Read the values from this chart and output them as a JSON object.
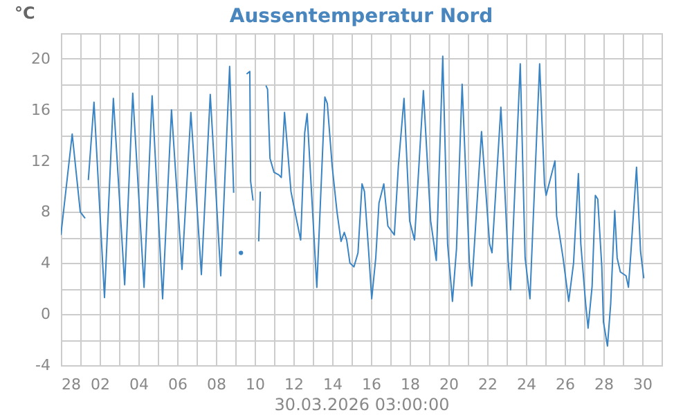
{
  "chart_data": {
    "type": "line",
    "title": "Aussentemperatur Nord",
    "xlabel": "30.03.2026 03:00:00",
    "ylabel": "°C",
    "grid": true,
    "legend": false,
    "marker": "none",
    "line_style": "solid",
    "xlim": [
      "2026-02-28",
      "2026-03-31"
    ],
    "xticks": [
      {
        "value": "2026-02-28",
        "label": "28"
      },
      {
        "value": "2026-03-01",
        "label": null
      },
      {
        "value": "2026-03-02",
        "label": "02"
      },
      {
        "value": "2026-03-03",
        "label": null
      },
      {
        "value": "2026-03-04",
        "label": "04"
      },
      {
        "value": "2026-03-05",
        "label": null
      },
      {
        "value": "2026-03-06",
        "label": "06"
      },
      {
        "value": "2026-03-07",
        "label": null
      },
      {
        "value": "2026-03-08",
        "label": "08"
      },
      {
        "value": "2026-03-09",
        "label": null
      },
      {
        "value": "2026-03-10",
        "label": "10"
      },
      {
        "value": "2026-03-11",
        "label": null
      },
      {
        "value": "2026-03-12",
        "label": "12"
      },
      {
        "value": "2026-03-13",
        "label": null
      },
      {
        "value": "2026-03-14",
        "label": "14"
      },
      {
        "value": "2026-03-15",
        "label": null
      },
      {
        "value": "2026-03-16",
        "label": "16"
      },
      {
        "value": "2026-03-17",
        "label": null
      },
      {
        "value": "2026-03-18",
        "label": "18"
      },
      {
        "value": "2026-03-19",
        "label": null
      },
      {
        "value": "2026-03-20",
        "label": "20"
      },
      {
        "value": "2026-03-21",
        "label": null
      },
      {
        "value": "2026-03-22",
        "label": "22"
      },
      {
        "value": "2026-03-23",
        "label": null
      },
      {
        "value": "2026-03-24",
        "label": "24"
      },
      {
        "value": "2026-03-25",
        "label": null
      },
      {
        "value": "2026-03-26",
        "label": "26"
      },
      {
        "value": "2026-03-27",
        "label": null
      },
      {
        "value": "2026-03-28",
        "label": "28"
      },
      {
        "value": "2026-03-29",
        "label": null
      },
      {
        "value": "2026-03-30",
        "label": "30"
      },
      {
        "value": "2026-03-31",
        "label": null
      }
    ],
    "ylim": [
      -4,
      22
    ],
    "yticks": [
      -4,
      {
        "value": -2,
        "label": null
      },
      0,
      {
        "value": 2,
        "label": null
      },
      4,
      {
        "value": 6,
        "label": null
      },
      8,
      {
        "value": 10,
        "label": null
      },
      12,
      {
        "value": 14,
        "label": null
      },
      16,
      {
        "value": 18,
        "label": null
      },
      20,
      {
        "value": 22,
        "label": null
      }
    ],
    "series": [
      {
        "color": "#3a84c4",
        "x": [
          "2026-02-28T00:00",
          "2026-02-28T14:00",
          "2026-03-01T00:00",
          "2026-03-01T06:00",
          "2026-03-01T08:00",
          "2026-03-01T10:00",
          "2026-03-01T17:00",
          "2026-03-02T06:00",
          "2026-03-02T17:00",
          "2026-03-03T07:00",
          "2026-03-03T17:00",
          "2026-03-04T07:00",
          "2026-03-04T17:00",
          "2026-03-05T06:00",
          "2026-03-05T17:00",
          "2026-03-06T06:00",
          "2026-03-06T17:00",
          "2026-03-07T06:00",
          "2026-03-07T17:00",
          "2026-03-08T06:00",
          "2026-03-08T17:00",
          "2026-03-08T22:00",
          "2026-03-09T02:00",
          "2026-03-09T07:00",
          "2026-03-09T10:00",
          "2026-03-09T14:00",
          "2026-03-09T18:00",
          "2026-03-09T19:00",
          "2026-03-09T22:00",
          "2026-03-10T02:00",
          "2026-03-10T05:00",
          "2026-03-10T07:00",
          "2026-03-10T10:00",
          "2026-03-10T14:00",
          "2026-03-10T16:00",
          "2026-03-10T19:00",
          "2026-03-11T00:00",
          "2026-03-11T06:00",
          "2026-03-11T09:00",
          "2026-03-11T13:00",
          "2026-03-11T21:00",
          "2026-03-12T02:00",
          "2026-03-12T09:00",
          "2026-03-12T14:00",
          "2026-03-12T17:00",
          "2026-03-13T05:00",
          "2026-03-13T15:00",
          "2026-03-13T18:00",
          "2026-03-14T00:00",
          "2026-03-14T06:00",
          "2026-03-14T11:00",
          "2026-03-14T15:00",
          "2026-03-14T18:00",
          "2026-03-14T22:00",
          "2026-03-15T03:00",
          "2026-03-15T08:00",
          "2026-03-15T13:00",
          "2026-03-15T16:00",
          "2026-03-15T21:00",
          "2026-03-16T01:00",
          "2026-03-16T06:00",
          "2026-03-16T10:00",
          "2026-03-16T16:00",
          "2026-03-16T21:00",
          "2026-03-17T05:00",
          "2026-03-17T10:00",
          "2026-03-17T17:00",
          "2026-03-18T00:00",
          "2026-03-18T06:00",
          "2026-03-18T17:00",
          "2026-03-19T02:00",
          "2026-03-19T09:00",
          "2026-03-19T17:00",
          "2026-03-19T23:00",
          "2026-03-20T05:00",
          "2026-03-20T10:00",
          "2026-03-20T17:00",
          "2026-03-21T02:00",
          "2026-03-21T05:00",
          "2026-03-21T17:00",
          "2026-03-22T03:00",
          "2026-03-22T06:00",
          "2026-03-22T17:00",
          "2026-03-23T02:00",
          "2026-03-23T05:00",
          "2026-03-23T17:00",
          "2026-03-23T23:00",
          "2026-03-24T05:00",
          "2026-03-24T17:00",
          "2026-03-24T23:00",
          "2026-03-25T01:00",
          "2026-03-25T12:00",
          "2026-03-25T14:00",
          "2026-03-25T22:00",
          "2026-03-26T05:00",
          "2026-03-26T11:00",
          "2026-03-26T17:00",
          "2026-03-26T20:00",
          "2026-03-27T02:00",
          "2026-03-27T05:00",
          "2026-03-27T10:00",
          "2026-03-27T14:00",
          "2026-03-27T17:00",
          "2026-03-27T22:00",
          "2026-03-28T00:00",
          "2026-03-28T05:00",
          "2026-03-28T09:00",
          "2026-03-28T14:00",
          "2026-03-28T17:00",
          "2026-03-28T21:00",
          "2026-03-29T04:00",
          "2026-03-29T07:00",
          "2026-03-29T10:00",
          "2026-03-29T17:00",
          "2026-03-29T22:00",
          "2026-03-30T02:00"
        ],
        "values": [
          6.2,
          14.1,
          8.0,
          7.5,
          null,
          10.5,
          16.6,
          1.3,
          16.9,
          2.3,
          17.3,
          2.1,
          17.1,
          1.2,
          16.0,
          3.5,
          15.8,
          3.1,
          17.2,
          3.0,
          19.4,
          9.5,
          null,
          4.8,
          null,
          18.8,
          19.0,
          10.4,
          8.9,
          null,
          5.7,
          9.6,
          null,
          17.9,
          17.6,
          12.2,
          11.1,
          10.9,
          10.7,
          15.8,
          9.6,
          8.0,
          5.8,
          14.2,
          15.7,
          2.1,
          17.0,
          16.5,
          11.6,
          8.0,
          5.7,
          6.4,
          5.8,
          4.0,
          3.7,
          4.8,
          10.2,
          9.6,
          5.1,
          1.2,
          4.4,
          8.7,
          10.2,
          6.9,
          6.2,
          11.6,
          16.9,
          7.3,
          5.8,
          17.5,
          7.3,
          4.2,
          20.2,
          5.5,
          1.0,
          5.1,
          18.0,
          4.0,
          2.2,
          14.3,
          5.5,
          4.8,
          16.2,
          4.2,
          1.9,
          19.6,
          4.4,
          1.2,
          19.6,
          10.2,
          9.3,
          12.0,
          7.7,
          4.4,
          1.0,
          4.0,
          11.0,
          5.5,
          0.8,
          -1.1,
          2.2,
          9.3,
          9.0,
          3.7,
          -0.6,
          -2.5,
          0.8,
          8.1,
          4.4,
          3.3,
          3.0,
          2.1,
          4.8,
          11.5,
          4.9,
          2.8
        ]
      }
    ]
  }
}
